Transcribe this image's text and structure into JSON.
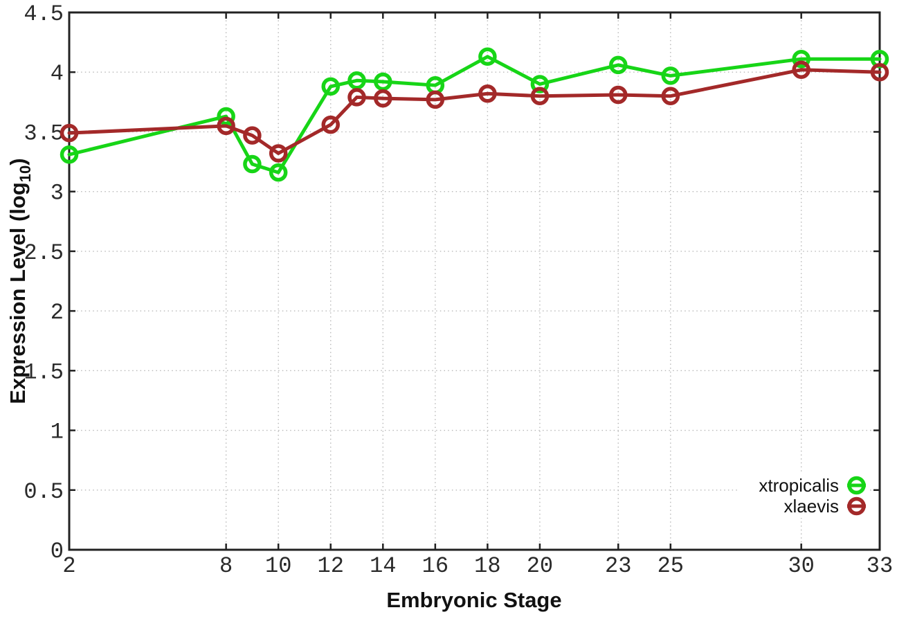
{
  "chart_data": {
    "type": "line",
    "xlabel": "Embryonic Stage",
    "ylabel": "Expression Level (log10)",
    "ylabel_parts": {
      "pre": "Expression Level (log",
      "sub": "10",
      "post": ")"
    },
    "xlim": [
      2,
      33
    ],
    "ylim": [
      0,
      4.5
    ],
    "xticks": [
      2,
      8,
      10,
      12,
      14,
      16,
      18,
      20,
      23,
      25,
      30,
      33
    ],
    "xtick_labels": [
      "2",
      "8",
      "10",
      "12",
      "14",
      "16",
      "18",
      "20",
      "23",
      "25",
      "30",
      "33"
    ],
    "yticks": [
      0,
      0.5,
      1,
      1.5,
      2,
      2.5,
      3,
      3.5,
      4,
      4.5
    ],
    "ytick_labels": [
      "0",
      "0.5",
      "1",
      "1.5",
      "2",
      "2.5",
      "3",
      "3.5",
      "4",
      "4.5"
    ],
    "grid": true,
    "marker": "open-circle",
    "legend_position": "bottom-right",
    "x": [
      2,
      8,
      9,
      10,
      12,
      13,
      14,
      16,
      18,
      20,
      23,
      25,
      30,
      33
    ],
    "series": [
      {
        "name": "xtropicalis",
        "color": "#17d517",
        "values": [
          3.31,
          3.63,
          3.23,
          3.16,
          3.88,
          3.93,
          3.92,
          3.89,
          4.13,
          3.9,
          4.06,
          3.97,
          4.11,
          4.11
        ]
      },
      {
        "name": "xlaevis",
        "color": "#a32929",
        "values": [
          3.49,
          3.55,
          3.47,
          3.32,
          3.56,
          3.79,
          3.78,
          3.77,
          3.82,
          3.8,
          3.81,
          3.8,
          4.02,
          4.0
        ]
      }
    ],
    "colors": {
      "grid": "#b8b8b8",
      "border": "#222222",
      "tick_text": "#2a2a2a",
      "label_text": "#111111"
    }
  }
}
